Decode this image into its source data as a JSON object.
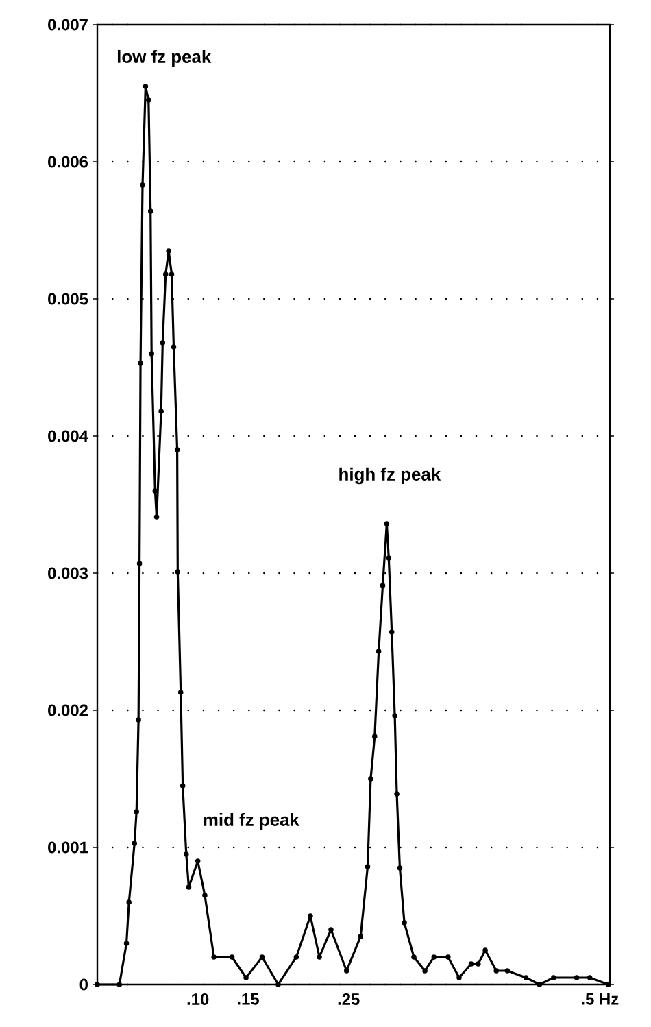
{
  "chart_data": {
    "type": "line",
    "x": [
      0.0,
      0.022,
      0.029,
      0.0315,
      0.037,
      0.039,
      0.041,
      0.042,
      0.043,
      0.045,
      0.048,
      0.051,
      0.053,
      0.054,
      0.0575,
      0.059,
      0.0635,
      0.065,
      0.068,
      0.071,
      0.074,
      0.076,
      0.0795,
      0.08,
      0.083,
      0.085,
      0.0885,
      0.091,
      0.1,
      0.107,
      0.116,
      0.134,
      0.148,
      0.164,
      0.18,
      0.198,
      0.212,
      0.221,
      0.2325,
      0.248,
      0.262,
      0.269,
      0.272,
      0.276,
      0.28,
      0.284,
      0.288,
      0.29,
      0.293,
      0.296,
      0.298,
      0.301,
      0.3055,
      0.315,
      0.326,
      0.335,
      0.349,
      0.36,
      0.372,
      0.379,
      0.386,
      0.397,
      0.408,
      0.4265,
      0.44,
      0.454,
      0.477,
      0.49,
      0.5085
    ],
    "values": [
      0.0,
      0.0,
      0.0003,
      0.0006,
      0.00103,
      0.00126,
      0.00193,
      0.00307,
      0.00453,
      0.00583,
      0.00655,
      0.00645,
      0.00564,
      0.0046,
      0.0036,
      0.00341,
      0.00418,
      0.00468,
      0.00518,
      0.00535,
      0.00518,
      0.00465,
      0.0039,
      0.00301,
      0.00213,
      0.00145,
      0.00095,
      0.00071,
      0.0009,
      0.00065,
      0.0002,
      0.0002,
      5e-05,
      0.0002,
      0.0,
      0.0002,
      0.0005,
      0.0002,
      0.0004,
      0.0001,
      0.00035,
      0.00086,
      0.0015,
      0.00181,
      0.00243,
      0.00291,
      0.00336,
      0.00311,
      0.00257,
      0.00196,
      0.00139,
      0.00085,
      0.00045,
      0.0002,
      0.0001,
      0.0002,
      0.0002,
      5e-05,
      0.00015,
      0.00015,
      0.00025,
      0.0001,
      0.0001,
      5e-05,
      0.0,
      5e-05,
      5e-05,
      5e-05,
      0.0
    ],
    "color": "#000000",
    "marker": "circle",
    "line_style": "solid",
    "grid": "y",
    "xlim": [
      0,
      0.51
    ],
    "ylim": [
      0,
      0.007
    ],
    "xticks": [
      {
        "value": 0.1,
        "label": ".10"
      },
      {
        "value": 0.15,
        "label": ".15"
      },
      {
        "value": 0.25,
        "label": ".25"
      },
      {
        "value": 0.5,
        "label": ".5 Hz"
      }
    ],
    "yticks": [
      0,
      0.001,
      0.002,
      0.003,
      0.004,
      0.005,
      0.006,
      0.007
    ],
    "annotations": [
      "low fz peak",
      "high fz peak",
      "mid fz peak"
    ]
  }
}
